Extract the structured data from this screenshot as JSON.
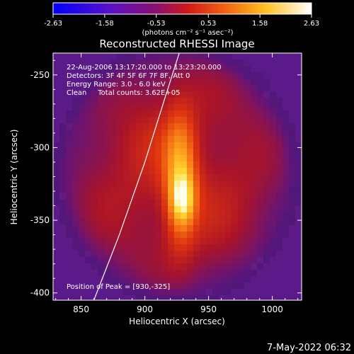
{
  "chart_data": {
    "type": "heatmap",
    "title": "Reconstructed RHESSI Image",
    "xlabel": "Heliocentric X (arcsec)",
    "ylabel": "Heliocentric Y (arcsec)",
    "xlim": [
      828,
      1023
    ],
    "ylim": [
      -405,
      -235
    ],
    "x_ticks": [
      850,
      900,
      950,
      1000
    ],
    "y_ticks": [
      -250,
      -300,
      -350,
      -400
    ],
    "colorbar": {
      "min": -2.63,
      "max": 2.63,
      "ticks": [
        "-2.63",
        "-1.58",
        "-0.53",
        "0.53",
        "1.58",
        "2.63"
      ],
      "unit_label": "(photons cm⁻² s⁻¹ asec⁻²)",
      "colormap": "blue-purple-red-orange-yellow-white"
    },
    "annotations": [
      "22-Aug-2006 13:17:20.000 to 13:23:20.000",
      "Detectors: 3F 4F 5F 6F 7F 8F, Att 0",
      "Energy Range: 3.0 - 6.0 keV",
      "Clean     Total counts: 3.62E+05"
    ],
    "peak_label": "Position of Peak = [930,-325]",
    "peak": {
      "x": 930,
      "y": -325,
      "value": 2.63
    },
    "limb_curve_points": [
      [
        860,
        -405
      ],
      [
        880,
        -360
      ],
      [
        900,
        -310
      ],
      [
        915,
        -268
      ],
      [
        927,
        -235
      ]
    ],
    "grid": false
  },
  "footer": {
    "timestamp": "7-May-2022 06:32"
  },
  "colors": {
    "background": "#000000",
    "text": "#ffffff",
    "frame": "#ffffff"
  }
}
